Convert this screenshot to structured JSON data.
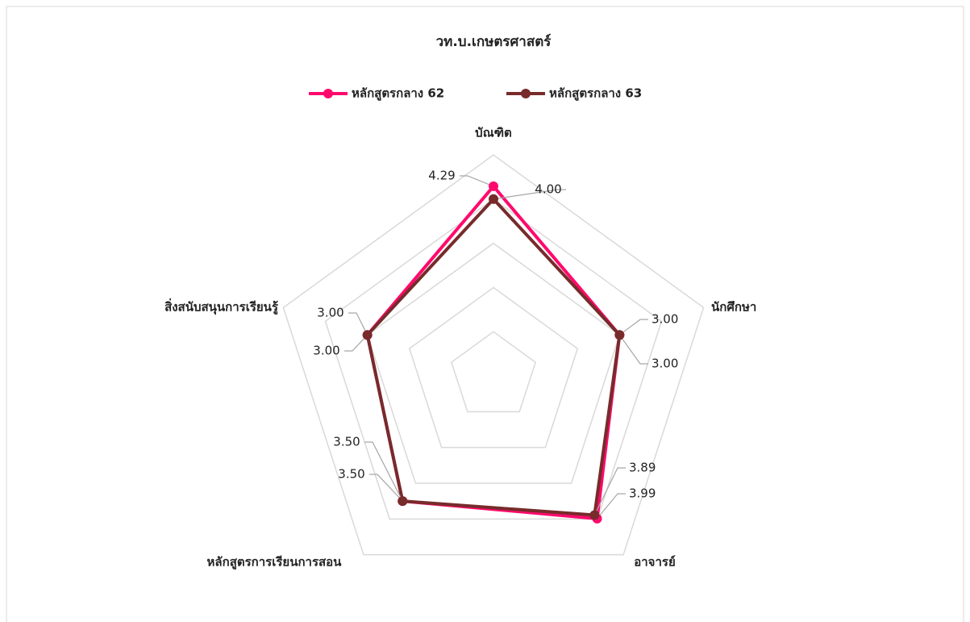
{
  "chart_data": {
    "type": "radar",
    "title": "วท.บ.เกษตรศาสตร์",
    "categories": [
      "บัณฑิต",
      "นักศึกษา",
      "อาจารย์",
      "หลักสูตรการเรียนการสอน",
      "สิ่งสนับสนุนการเรียนรู้"
    ],
    "series": [
      {
        "name": "หลักสูตรกลาง 62",
        "color": "#ff0a6c",
        "values": [
          4.29,
          3.0,
          3.99,
          3.5,
          3.0
        ],
        "value_labels": [
          "4.29",
          "3.00",
          "3.99",
          "3.50",
          "3.00"
        ]
      },
      {
        "name": "หลักสูตรกลาง 63",
        "color": "#772b2b",
        "values": [
          4.0,
          3.0,
          3.89,
          3.5,
          3.0
        ],
        "value_labels": [
          "4.00",
          "3.00",
          "3.89",
          "3.50",
          "3.00"
        ]
      }
    ],
    "rlim": [
      0,
      5
    ],
    "rticks": [
      1,
      2,
      3,
      4,
      5
    ],
    "legend": "top"
  }
}
